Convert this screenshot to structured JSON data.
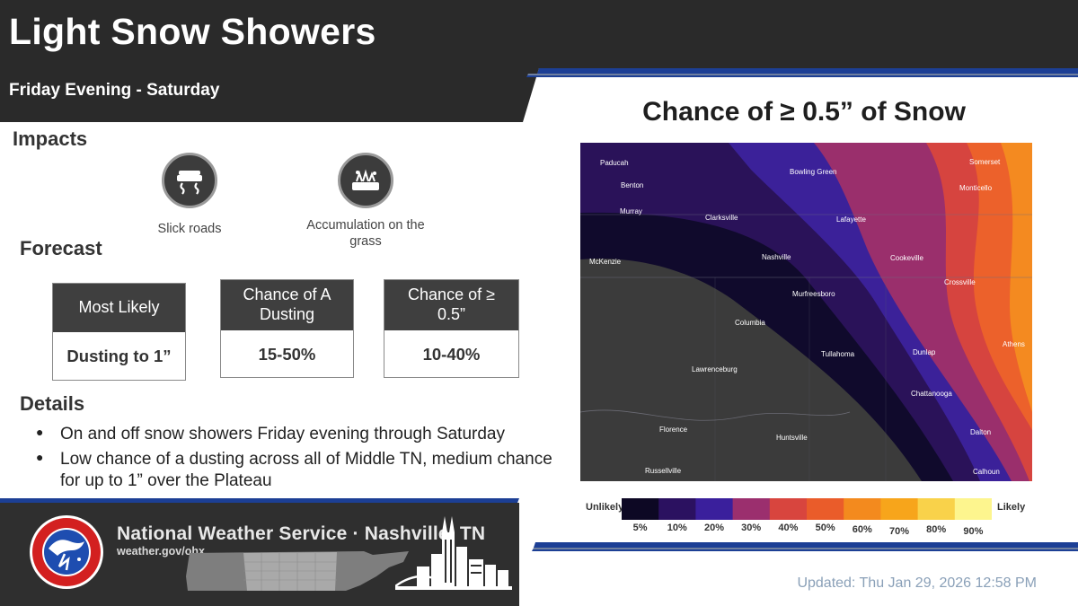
{
  "header": {
    "title": "Light Snow Showers",
    "subtitle": "Friday Evening - Saturday"
  },
  "impacts": {
    "heading": "Impacts",
    "items": [
      {
        "label": "Slick roads",
        "icon": "slick-roads-icon"
      },
      {
        "label": "Accumulation on the grass",
        "icon": "grass-accumulation-icon"
      }
    ]
  },
  "forecast": {
    "heading": "Forecast",
    "boxes": [
      {
        "header": "Most Likely",
        "value": "Dusting to 1”"
      },
      {
        "header": "Chance of A Dusting",
        "value": "15-50%"
      },
      {
        "header": "Chance of ≥ 0.5”",
        "value": "10-40%"
      }
    ]
  },
  "details": {
    "heading": "Details",
    "bullets": [
      "On and off snow showers Friday evening through Saturday",
      "Low chance of a dusting across all of Middle TN, medium chance for up to 1” over the Plateau"
    ]
  },
  "map": {
    "title": "Chance of ≥ 0.5” of Snow",
    "cities": [
      "Paducah",
      "Benton",
      "Murray",
      "Clarksville",
      "Bowling Green",
      "Lafayette",
      "Somerset",
      "Monticello",
      "McKenzie",
      "Nashville",
      "Cookeville",
      "Crossville",
      "Murfreesboro",
      "Columbia",
      "Tullahoma",
      "Dunlap",
      "Athens",
      "Lawrenceburg",
      "Chattanooga",
      "Florence",
      "Huntsville",
      "Dalton",
      "Russellville",
      "Calhoun"
    ],
    "legend": {
      "low_label": "Unlikely",
      "high_label": "Likely",
      "ticks": [
        "5%",
        "10%",
        "20%",
        "30%",
        "40%",
        "50%",
        "60%",
        "70%",
        "80%",
        "90%"
      ],
      "colors": [
        "#0d0824",
        "#2b1160",
        "#3a1f9c",
        "#9b2f6e",
        "#d8453e",
        "#ea5c2a",
        "#f38a1e",
        "#f7a51b",
        "#f9d24a",
        "#fdf58e"
      ]
    }
  },
  "footer": {
    "office": "National Weather Service · Nashville, TN",
    "url": "weather.gov/ohx",
    "seal_text": "NATIONAL WEATHER SERVICE"
  },
  "updated": "Updated: Thu Jan 29, 2026 12:58 PM",
  "colors": {
    "banner": "#2a2a2a",
    "accent_blue": "#1c3f95",
    "box_header": "#3f3f3f"
  }
}
